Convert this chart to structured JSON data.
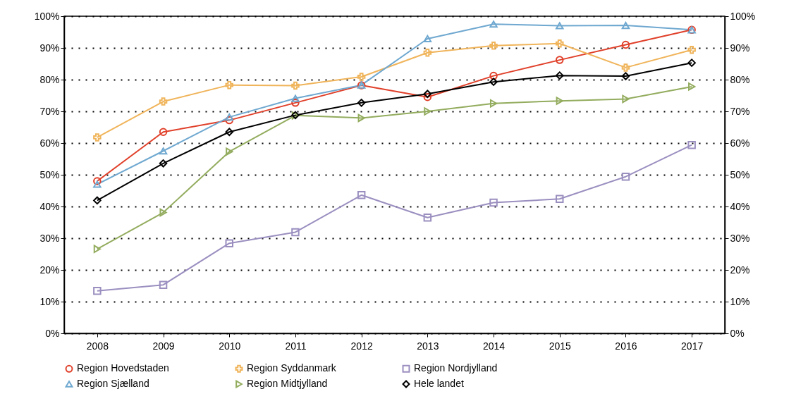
{
  "chart_data": {
    "type": "line",
    "categories": [
      "2008",
      "2009",
      "2010",
      "2011",
      "2012",
      "2013",
      "2014",
      "2015",
      "2016",
      "2017"
    ],
    "ylim": [
      0,
      100
    ],
    "yticks": [
      {
        "value": 0,
        "label": "0%"
      },
      {
        "value": 10,
        "label": "10%"
      },
      {
        "value": 20,
        "label": "20%"
      },
      {
        "value": 30,
        "label": "30%"
      },
      {
        "value": 40,
        "label": "40%"
      },
      {
        "value": 50,
        "label": "50%"
      },
      {
        "value": 60,
        "label": "60%"
      },
      {
        "value": 70,
        "label": "70%"
      },
      {
        "value": 80,
        "label": "80%"
      },
      {
        "value": 90,
        "label": "90%"
      },
      {
        "value": 100,
        "label": "100%"
      }
    ],
    "y2lim": [
      0,
      100
    ],
    "y2ticks": [
      {
        "value": 0,
        "label": "0%"
      },
      {
        "value": 10,
        "label": "10%"
      },
      {
        "value": 20,
        "label": "20%"
      },
      {
        "value": 30,
        "label": "30%"
      },
      {
        "value": 40,
        "label": "40%"
      },
      {
        "value": 50,
        "label": "50%"
      },
      {
        "value": 60,
        "label": "60%"
      },
      {
        "value": 70,
        "label": "70%"
      },
      {
        "value": 80,
        "label": "80%"
      },
      {
        "value": 90,
        "label": "90%"
      },
      {
        "value": 100,
        "label": "100%"
      }
    ],
    "grid": "y",
    "legend": "bottom",
    "series": [
      {
        "name": "Region Hovedstaden",
        "color": "#e0402a",
        "marker": "circle",
        "values": [
          48,
          63.5,
          67.2,
          72.7,
          78.2,
          74.5,
          81.2,
          86.2,
          91,
          95.7
        ]
      },
      {
        "name": "Region Syddanmark",
        "color": "#f0b45a",
        "marker": "cross",
        "values": [
          61.8,
          73.1,
          78.3,
          78.1,
          80.9,
          88.5,
          90.7,
          91.4,
          83.8,
          89.4
        ]
      },
      {
        "name": "Region Nordjylland",
        "color": "#9b8fc0",
        "marker": "square",
        "values": [
          13.4,
          15.3,
          28.4,
          31.9,
          43.6,
          36.5,
          41.2,
          42.4,
          49.4,
          59.4
        ]
      },
      {
        "name": "Region Sjælland",
        "color": "#6fa8d0",
        "marker": "triangle",
        "values": [
          47,
          57.5,
          68.2,
          74.1,
          78.3,
          92.9,
          97.5,
          97,
          97.1,
          95.7
        ]
      },
      {
        "name": "Region Midtjylland",
        "color": "#93ac5e",
        "marker": "triangle-right",
        "values": [
          26.6,
          38.1,
          57.3,
          68.7,
          67.9,
          70,
          72.5,
          73.3,
          73.9,
          77.8
        ]
      },
      {
        "name": "Hele landet",
        "color": "#000000",
        "marker": "diamond",
        "values": [
          41.9,
          53.6,
          63.5,
          68.8,
          72.7,
          75.5,
          79.3,
          81.3,
          81.1,
          85.3
        ]
      }
    ]
  }
}
